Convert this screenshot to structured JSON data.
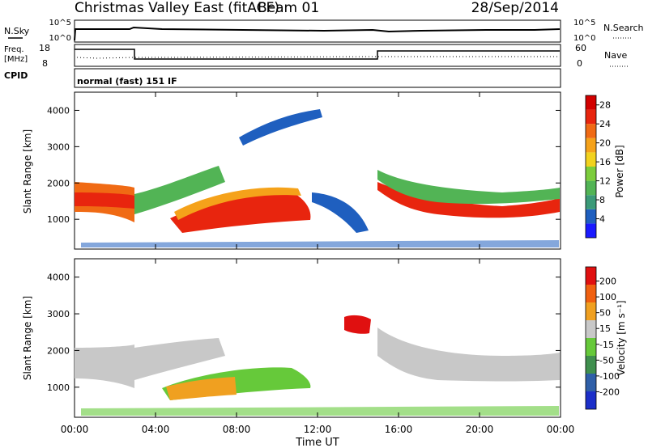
{
  "header": {
    "title": "Christmas Valley East (fitACF)",
    "beam": "Beam 01",
    "date": "28/Sep/2014"
  },
  "panels": {
    "nsky": {
      "left_label": "N.Sky",
      "right_label": "N.Search",
      "left_ticks": [
        "10^5",
        "10^0"
      ],
      "right_ticks": [
        "10^5",
        "10^0"
      ]
    },
    "freq": {
      "left_label_1": "Freq.",
      "left_label_2": "[MHz]",
      "right_label": "Nave",
      "left_ticks": [
        "18",
        "8"
      ],
      "right_ticks": [
        "60",
        "0"
      ]
    },
    "cpid": {
      "label": "CPID",
      "mode": "normal (fast) 151 IF"
    }
  },
  "chart_data": [
    {
      "type": "heatmap",
      "quantity": "Power",
      "ylabel": "Slant Range [km]",
      "yticks": [
        "4000",
        "3000",
        "2000",
        "1000"
      ],
      "ylim": [
        180,
        4500
      ],
      "colorbar": {
        "label": "Power [dB]",
        "ticks": [
          "28",
          "24",
          "20",
          "16",
          "12",
          "8",
          "4"
        ],
        "range": [
          0,
          30
        ],
        "colors": [
          "#1a1aff",
          "#1f5fbf",
          "#3b9a78",
          "#52b455",
          "#7ccd3c",
          "#f2d21e",
          "#f5a21a",
          "#f06a14",
          "#e8250e",
          "#d20000"
        ]
      }
    },
    {
      "type": "heatmap",
      "quantity": "Velocity",
      "ylabel": "Slant Range [km]",
      "yticks": [
        "4000",
        "3000",
        "2000",
        "1000"
      ],
      "ylim": [
        180,
        4500
      ],
      "xlabel": "Time UT",
      "xticks": [
        "00:00",
        "04:00",
        "08:00",
        "12:00",
        "16:00",
        "20:00",
        "00:00"
      ],
      "xlim": [
        0,
        24
      ],
      "colorbar": {
        "label": "Velocity [m s⁻¹]",
        "ticks": [
          "200",
          "100",
          "50",
          "15",
          "-15",
          "-50",
          "-100",
          "-200"
        ],
        "colors": [
          "#1c2fc9",
          "#2f5fa8",
          "#3f8f4e",
          "#66c93a",
          "#c8c8c8",
          "#f0a020",
          "#f06010",
          "#e01010"
        ]
      }
    }
  ]
}
